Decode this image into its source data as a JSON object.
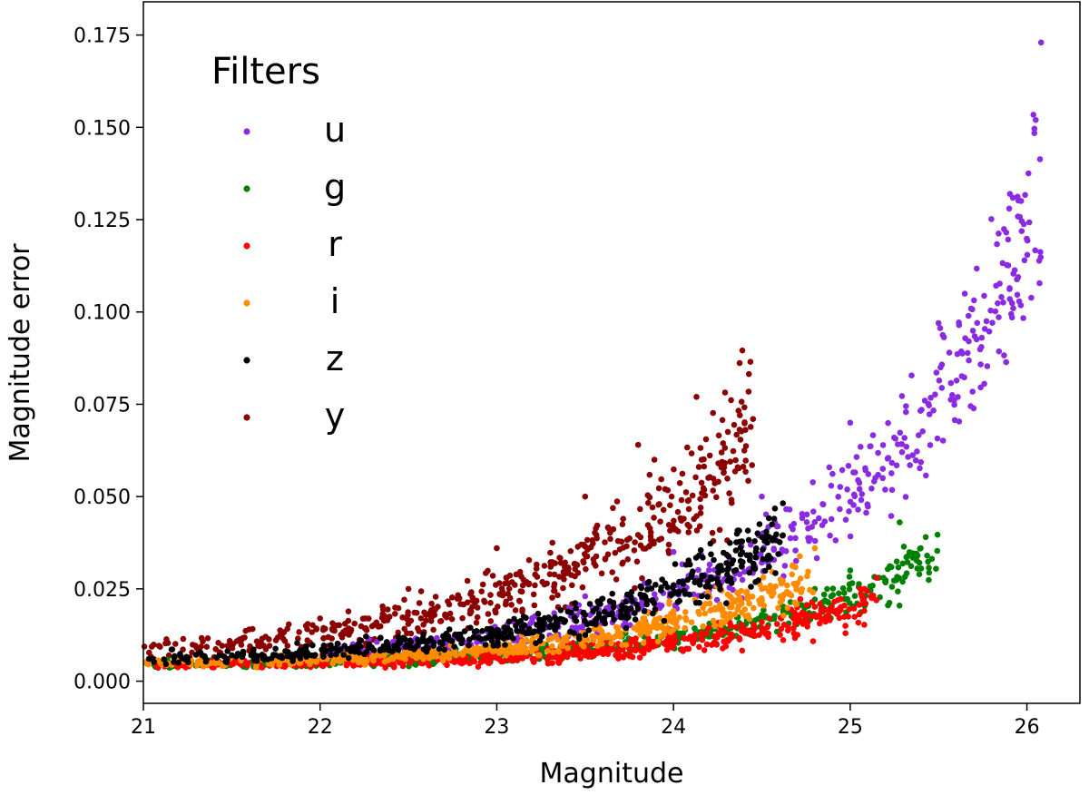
{
  "chart_data": {
    "type": "scatter",
    "xlabel": "Magnitude",
    "ylabel": "Magnitude error",
    "xlim": [
      21,
      26.3
    ],
    "ylim": [
      -0.006,
      0.184
    ],
    "xticks": [
      "21",
      "22",
      "23",
      "24",
      "25",
      "26"
    ],
    "yticks": [
      "0.000",
      "0.025",
      "0.050",
      "0.075",
      "0.100",
      "0.125",
      "0.150",
      "0.175"
    ],
    "grid": false,
    "legend": {
      "title": "Filters",
      "placement": "top-left"
    },
    "series": [
      {
        "name": "u",
        "color": "#8a2be2",
        "m_range": [
          22.0,
          26.08
        ],
        "m_peak": 26.08,
        "err_at_peak": 0.13,
        "err_floor": 0.005,
        "spread": 0.12,
        "x": [
          26.08,
          26.05,
          25.9,
          25.5,
          25.0,
          24.5,
          24.0,
          23.5
        ],
        "y": [
          0.173,
          0.152,
          0.128,
          0.097,
          0.07,
          0.05,
          0.035,
          0.023
        ]
      },
      {
        "name": "g",
        "color": "#008000",
        "m_range": [
          21.0,
          25.5
        ],
        "m_peak": 25.5,
        "err_at_peak": 0.034,
        "err_floor": 0.004,
        "spread": 0.12,
        "x": [
          25.28,
          25.0,
          24.8,
          24.5,
          24.0
        ],
        "y": [
          0.043,
          0.03,
          0.025,
          0.018,
          0.011
        ]
      },
      {
        "name": "r",
        "color": "#ff0000",
        "m_range": [
          21.0,
          25.15
        ],
        "m_peak": 25.15,
        "err_at_peak": 0.022,
        "err_floor": 0.004,
        "spread": 0.15,
        "x": [
          25.15,
          24.7,
          24.5,
          24.0,
          23.5
        ],
        "y": [
          0.028,
          0.02,
          0.016,
          0.01,
          0.007
        ]
      },
      {
        "name": "i",
        "color": "#ff8c00",
        "m_range": [
          21.0,
          24.8
        ],
        "m_peak": 24.8,
        "err_at_peak": 0.029,
        "err_floor": 0.004,
        "spread": 0.13,
        "x": [
          24.8,
          24.5,
          24.0,
          23.5,
          23.0
        ],
        "y": [
          0.036,
          0.025,
          0.019,
          0.013,
          0.009
        ]
      },
      {
        "name": "z",
        "color": "#000000",
        "m_range": [
          21.0,
          24.62
        ],
        "m_peak": 24.3,
        "err_at_peak": 0.031,
        "err_floor": 0.005,
        "spread": 0.13,
        "x": [
          24.57,
          24.3,
          24.0,
          23.5,
          23.0
        ],
        "y": [
          0.044,
          0.032,
          0.026,
          0.018,
          0.012
        ]
      },
      {
        "name": "y",
        "color": "#8b0000",
        "m_range": [
          21.0,
          24.45
        ],
        "m_peak": 24.45,
        "err_at_peak": 0.07,
        "err_floor": 0.006,
        "spread": 0.15,
        "x": [
          24.13,
          24.45,
          23.8,
          23.5,
          23.0,
          22.5,
          22.0
        ],
        "y": [
          0.077,
          0.071,
          0.064,
          0.05,
          0.036,
          0.025,
          0.017
        ]
      }
    ]
  }
}
